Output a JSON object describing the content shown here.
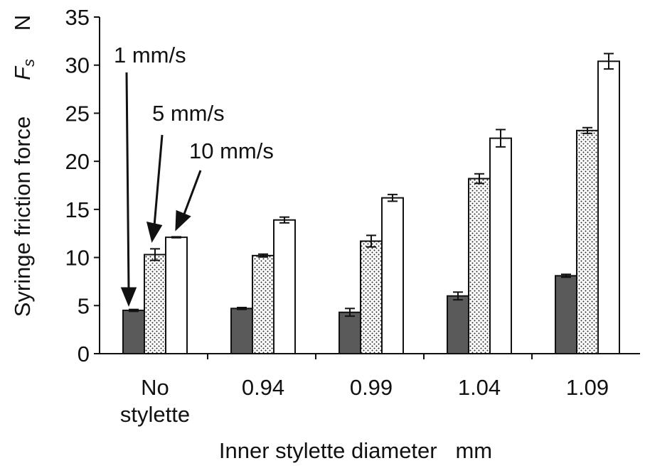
{
  "chart_data": {
    "type": "bar",
    "categories": [
      [
        "No",
        "stylette"
      ],
      [
        "0.94"
      ],
      [
        "0.99"
      ],
      [
        "1.04"
      ],
      [
        "1.09"
      ]
    ],
    "ylabel": "Syringe friction force",
    "ylabel_symbol": "F",
    "ylabel_subscript": "s",
    "ylabel_unit": "N",
    "xlabel": "Inner stylette diameter   mm",
    "ylim": [
      0,
      35
    ],
    "yticks": [
      0,
      5,
      10,
      15,
      20,
      25,
      30,
      35
    ],
    "grid": false,
    "series": [
      {
        "name": "1 mm/s",
        "fill": "solid",
        "color": "#5a5a5a",
        "values": [
          4.5,
          4.7,
          4.3,
          6.0,
          8.1
        ],
        "errors": [
          0.1,
          0.1,
          0.4,
          0.4,
          0.15
        ]
      },
      {
        "name": "5 mm/s",
        "fill": "dotted",
        "color": "#ffffff",
        "values": [
          10.3,
          10.2,
          11.7,
          18.2,
          23.2
        ],
        "errors": [
          0.6,
          0.15,
          0.6,
          0.5,
          0.3
        ]
      },
      {
        "name": "10 mm/s",
        "fill": "white",
        "color": "#ffffff",
        "values": [
          12.1,
          13.9,
          16.2,
          22.4,
          30.4
        ],
        "errors": [
          0.05,
          0.3,
          0.35,
          0.9,
          0.8
        ]
      }
    ],
    "annotations": [
      "1 mm/s",
      "5 mm/s",
      "10 mm/s"
    ]
  }
}
